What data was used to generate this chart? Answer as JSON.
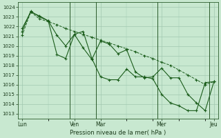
{
  "xlabel": "Pression niveau de la mer( hPa )",
  "ylim": [
    1012.5,
    1024.5
  ],
  "yticks": [
    1013,
    1014,
    1015,
    1016,
    1017,
    1018,
    1019,
    1020,
    1021,
    1022,
    1023,
    1024
  ],
  "bg_color": "#c8e8d0",
  "grid_color": "#a0c8b0",
  "line_color": "#1a5c1a",
  "xtick_labels": [
    "Lun",
    "Ven",
    "Mar",
    "Mer",
    "Jeu"
  ],
  "xtick_positions": [
    0,
    6,
    9,
    16,
    22
  ],
  "xlim": [
    -0.5,
    22.5
  ],
  "vlines_x": [
    5.5,
    8.5,
    15.5,
    21.5
  ],
  "s1_x": [
    0,
    1,
    2,
    3,
    4,
    5,
    6,
    7,
    8,
    9,
    10,
    11,
    12,
    13,
    14,
    15,
    16,
    17,
    18,
    19,
    20,
    21,
    22
  ],
  "s1_y": [
    1021.1,
    1023.5,
    1022.8,
    1022.5,
    1022.2,
    1021.8,
    1021.5,
    1021.2,
    1020.9,
    1020.6,
    1020.3,
    1020.0,
    1019.7,
    1019.4,
    1019.0,
    1018.7,
    1018.3,
    1018.0,
    1017.5,
    1017.0,
    1016.5,
    1016.0,
    1016.3
  ],
  "s2_x": [
    0,
    1,
    2,
    3,
    4,
    5,
    6,
    7,
    8,
    9,
    10,
    11,
    12,
    13,
    14,
    15,
    16,
    17,
    18,
    19,
    20,
    21,
    22
  ],
  "s2_y": [
    1021.5,
    1023.6,
    1023.0,
    1022.6,
    1021.1,
    1020.0,
    1021.2,
    1019.8,
    1018.6,
    1020.5,
    1020.2,
    1019.2,
    1019.6,
    1017.3,
    1016.7,
    1016.8,
    1017.7,
    1016.7,
    1016.7,
    1015.0,
    1014.1,
    1013.3,
    1016.3
  ],
  "s3_x": [
    0,
    1,
    2,
    3,
    4,
    5,
    6,
    7,
    8,
    9,
    10,
    11,
    12,
    13,
    14,
    15,
    16,
    17,
    18,
    19,
    20,
    21,
    22
  ],
  "s3_y": [
    1021.8,
    1023.5,
    1023.1,
    1022.6,
    1019.1,
    1018.7,
    1021.2,
    1021.5,
    1018.7,
    1016.8,
    1016.5,
    1016.5,
    1017.6,
    1016.8,
    1016.8,
    1016.6,
    1015.0,
    1014.1,
    1013.8,
    1013.3,
    1013.3,
    1016.2,
    1016.3
  ]
}
